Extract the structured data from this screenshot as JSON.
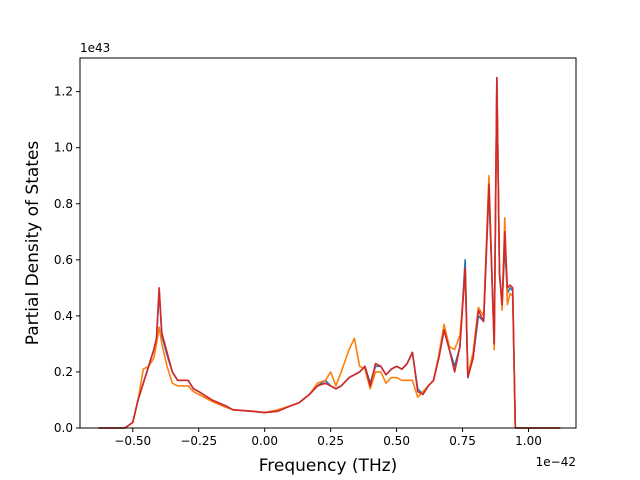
{
  "chart_data": {
    "type": "line",
    "title": "",
    "xlabel": "Frequency (THz)",
    "ylabel": "Partial Density of States",
    "x_offset_label": "1e−42",
    "y_offset_label": "1e43",
    "xlim": [
      -0.7,
      1.18
    ],
    "ylim": [
      0,
      1.32
    ],
    "xticks": [
      -0.5,
      -0.25,
      0.0,
      0.25,
      0.5,
      0.75,
      1.0
    ],
    "xtick_labels": [
      "−0.50",
      "−0.25",
      "0.00",
      "0.25",
      "0.50",
      "0.75",
      "1.00"
    ],
    "yticks": [
      0.0,
      0.2,
      0.4,
      0.6,
      0.8,
      1.0,
      1.2
    ],
    "ytick_labels": [
      "0.0",
      "0.2",
      "0.4",
      "0.6",
      "0.8",
      "1.0",
      "1.2"
    ],
    "grid": false,
    "legend": "none",
    "series": [
      {
        "color": "#1f77b4",
        "x": [
          -0.63,
          -0.53,
          -0.5,
          -0.48,
          -0.46,
          -0.44,
          -0.42,
          -0.41,
          -0.4,
          -0.39,
          -0.37,
          -0.35,
          -0.33,
          -0.31,
          -0.29,
          -0.27,
          -0.25,
          -0.2,
          -0.15,
          -0.12,
          -0.05,
          0.0,
          0.05,
          0.1,
          0.13,
          0.17,
          0.2,
          0.23,
          0.25,
          0.27,
          0.29,
          0.32,
          0.34,
          0.36,
          0.38,
          0.4,
          0.42,
          0.44,
          0.46,
          0.48,
          0.5,
          0.52,
          0.54,
          0.56,
          0.58,
          0.6,
          0.62,
          0.64,
          0.66,
          0.68,
          0.7,
          0.72,
          0.74,
          0.76,
          0.77,
          0.79,
          0.81,
          0.83,
          0.85,
          0.87,
          0.88,
          0.89,
          0.9,
          0.91,
          0.92,
          0.93,
          0.94,
          0.95,
          0.96,
          0.97,
          0.98,
          1.0,
          1.12
        ],
        "values": [
          0.0,
          0.0,
          0.02,
          0.1,
          0.16,
          0.22,
          0.28,
          0.32,
          0.49,
          0.33,
          0.26,
          0.2,
          0.17,
          0.17,
          0.17,
          0.14,
          0.13,
          0.1,
          0.08,
          0.065,
          0.06,
          0.055,
          0.06,
          0.08,
          0.09,
          0.12,
          0.15,
          0.17,
          0.15,
          0.14,
          0.15,
          0.18,
          0.19,
          0.2,
          0.22,
          0.16,
          0.22,
          0.22,
          0.19,
          0.21,
          0.22,
          0.21,
          0.23,
          0.27,
          0.14,
          0.12,
          0.15,
          0.17,
          0.25,
          0.35,
          0.28,
          0.22,
          0.29,
          0.6,
          0.18,
          0.25,
          0.4,
          0.38,
          0.85,
          0.3,
          1.25,
          0.55,
          0.44,
          0.65,
          0.48,
          0.5,
          0.49,
          0.0,
          0.0,
          0.0,
          0.0,
          0.0,
          0.0
        ]
      },
      {
        "color": "#ff7f0e",
        "x": [
          -0.63,
          -0.53,
          -0.5,
          -0.48,
          -0.46,
          -0.44,
          -0.42,
          -0.41,
          -0.4,
          -0.39,
          -0.37,
          -0.35,
          -0.33,
          -0.31,
          -0.29,
          -0.27,
          -0.25,
          -0.2,
          -0.15,
          -0.12,
          -0.05,
          0.0,
          0.05,
          0.1,
          0.13,
          0.17,
          0.2,
          0.23,
          0.25,
          0.27,
          0.29,
          0.32,
          0.34,
          0.36,
          0.38,
          0.4,
          0.42,
          0.44,
          0.46,
          0.48,
          0.5,
          0.52,
          0.54,
          0.56,
          0.58,
          0.6,
          0.62,
          0.64,
          0.66,
          0.68,
          0.7,
          0.72,
          0.74,
          0.76,
          0.77,
          0.79,
          0.81,
          0.83,
          0.85,
          0.87,
          0.88,
          0.89,
          0.9,
          0.91,
          0.92,
          0.93,
          0.94,
          0.95,
          0.96,
          0.97,
          0.98,
          1.0,
          1.12
        ],
        "values": [
          0.0,
          0.0,
          0.02,
          0.1,
          0.21,
          0.22,
          0.25,
          0.3,
          0.36,
          0.3,
          0.22,
          0.16,
          0.15,
          0.15,
          0.15,
          0.13,
          0.12,
          0.095,
          0.075,
          0.065,
          0.06,
          0.055,
          0.065,
          0.08,
          0.09,
          0.12,
          0.16,
          0.17,
          0.2,
          0.15,
          0.2,
          0.28,
          0.32,
          0.22,
          0.21,
          0.14,
          0.2,
          0.2,
          0.16,
          0.18,
          0.18,
          0.17,
          0.17,
          0.17,
          0.11,
          0.13,
          0.15,
          0.17,
          0.26,
          0.37,
          0.29,
          0.28,
          0.33,
          0.55,
          0.19,
          0.27,
          0.43,
          0.4,
          0.9,
          0.28,
          1.22,
          0.56,
          0.42,
          0.75,
          0.44,
          0.48,
          0.47,
          0.0,
          0.0,
          0.0,
          0.0,
          0.0,
          0.0
        ]
      },
      {
        "color": "#d62728",
        "x": [
          -0.63,
          -0.53,
          -0.5,
          -0.48,
          -0.46,
          -0.44,
          -0.42,
          -0.41,
          -0.4,
          -0.39,
          -0.37,
          -0.35,
          -0.33,
          -0.31,
          -0.29,
          -0.27,
          -0.25,
          -0.2,
          -0.15,
          -0.12,
          -0.05,
          0.0,
          0.05,
          0.1,
          0.13,
          0.17,
          0.2,
          0.23,
          0.25,
          0.27,
          0.29,
          0.32,
          0.34,
          0.36,
          0.38,
          0.4,
          0.42,
          0.44,
          0.46,
          0.48,
          0.5,
          0.52,
          0.54,
          0.56,
          0.58,
          0.6,
          0.62,
          0.64,
          0.66,
          0.68,
          0.7,
          0.72,
          0.74,
          0.76,
          0.77,
          0.79,
          0.81,
          0.83,
          0.85,
          0.87,
          0.88,
          0.89,
          0.9,
          0.91,
          0.92,
          0.93,
          0.94,
          0.95,
          0.96,
          0.97,
          0.98,
          1.0,
          1.12
        ],
        "values": [
          0.0,
          0.0,
          0.02,
          0.1,
          0.16,
          0.22,
          0.28,
          0.32,
          0.5,
          0.34,
          0.27,
          0.2,
          0.17,
          0.17,
          0.17,
          0.14,
          0.13,
          0.1,
          0.08,
          0.065,
          0.06,
          0.055,
          0.06,
          0.08,
          0.09,
          0.12,
          0.15,
          0.16,
          0.15,
          0.14,
          0.15,
          0.18,
          0.19,
          0.2,
          0.22,
          0.15,
          0.23,
          0.22,
          0.19,
          0.21,
          0.22,
          0.21,
          0.23,
          0.27,
          0.13,
          0.12,
          0.15,
          0.17,
          0.25,
          0.35,
          0.28,
          0.2,
          0.29,
          0.57,
          0.18,
          0.25,
          0.42,
          0.38,
          0.87,
          0.3,
          1.25,
          0.55,
          0.44,
          0.7,
          0.5,
          0.51,
          0.5,
          0.0,
          0.0,
          0.0,
          0.0,
          0.0,
          0.0
        ]
      }
    ]
  }
}
